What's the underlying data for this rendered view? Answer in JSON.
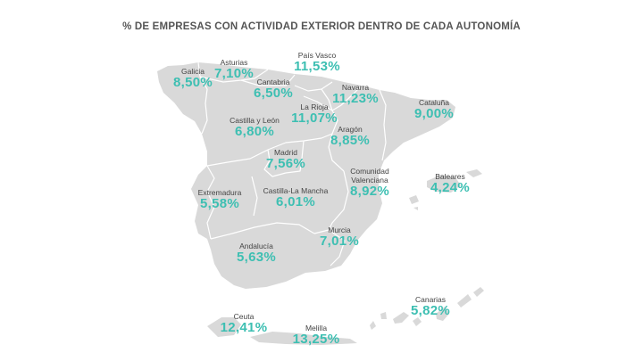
{
  "title": "% DE EMPRESAS CON ACTIVIDAD EXTERIOR DENTRO DE CADA AUTONOMÍA",
  "colors": {
    "land": "#d9d9d9",
    "border": "#ffffff",
    "value": "#3dbfb2",
    "label": "#444444",
    "title": "#555555"
  },
  "regions": [
    {
      "id": "galicia",
      "name": "Galicia",
      "value": "8,50%"
    },
    {
      "id": "asturias",
      "name": "Asturias",
      "value": "7,10%"
    },
    {
      "id": "cantabria",
      "name": "Cantabria",
      "value": "6,50%"
    },
    {
      "id": "pais-vasco",
      "name": "País Vasco",
      "value": "11,53%"
    },
    {
      "id": "navarra",
      "name": "Navarra",
      "value": "11,23%"
    },
    {
      "id": "la-rioja",
      "name": "La Rioja",
      "value": "11,07%"
    },
    {
      "id": "cataluna",
      "name": "Cataluña",
      "value": "9,00%"
    },
    {
      "id": "castilla-leon",
      "name": "Castilla y León",
      "value": "6,80%"
    },
    {
      "id": "aragon",
      "name": "Aragón",
      "value": "8,85%"
    },
    {
      "id": "madrid",
      "name": "Madrid",
      "value": "7,56%"
    },
    {
      "id": "comunidad-valenciana",
      "name": "Comunidad\nValenciana",
      "value": "8,92%"
    },
    {
      "id": "baleares",
      "name": "Baleares",
      "value": "4,24%"
    },
    {
      "id": "extremadura",
      "name": "Extremadura",
      "value": "5,58%"
    },
    {
      "id": "castilla-la-mancha",
      "name": "Castilla-La Mancha",
      "value": "6,01%"
    },
    {
      "id": "murcia",
      "name": "Murcia",
      "value": "7,01%"
    },
    {
      "id": "andalucia",
      "name": "Andalucía",
      "value": "5,63%"
    },
    {
      "id": "canarias",
      "name": "Canarias",
      "value": "5,82%"
    },
    {
      "id": "ceuta",
      "name": "Ceuta",
      "value": "12,41%"
    },
    {
      "id": "melilla",
      "name": "Melilla",
      "value": "13,25%"
    }
  ]
}
